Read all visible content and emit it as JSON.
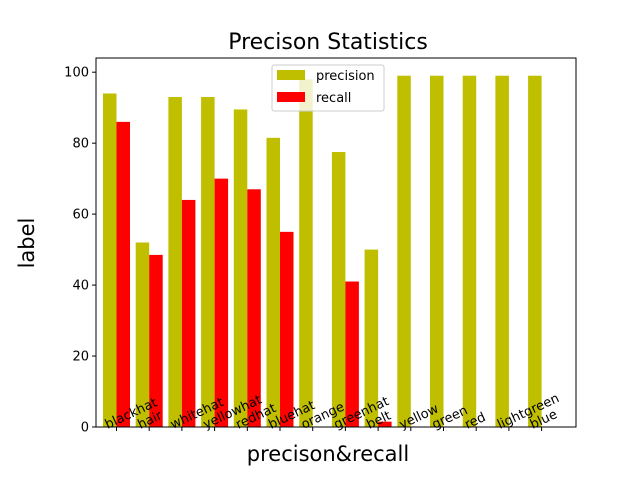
{
  "chart_data": {
    "type": "bar",
    "title": "Precison Statistics",
    "xlabel": "precison&recall",
    "ylabel": "label",
    "categories": [
      "blackhat",
      "hair",
      "whitehat",
      "yellowhat",
      "redhat",
      "bluehat",
      "orange",
      "greenhat",
      "belt",
      "yellow",
      "green",
      "red",
      "lightgreen",
      "blue"
    ],
    "series": [
      {
        "name": "precision",
        "color": "#bfbf00",
        "values": [
          94,
          52,
          93,
          93,
          89.5,
          81.5,
          98,
          77.5,
          50,
          99,
          99,
          99,
          99,
          99
        ]
      },
      {
        "name": "recall",
        "color": "#ff0000",
        "values": [
          86,
          48.5,
          64,
          70,
          67,
          55,
          0,
          41,
          1.5,
          0,
          0,
          0,
          0,
          0
        ]
      }
    ],
    "ylim": [
      0,
      104
    ],
    "yticks": [
      0,
      20,
      40,
      60,
      80,
      100
    ],
    "grid": false,
    "legend_position": "top-center"
  }
}
